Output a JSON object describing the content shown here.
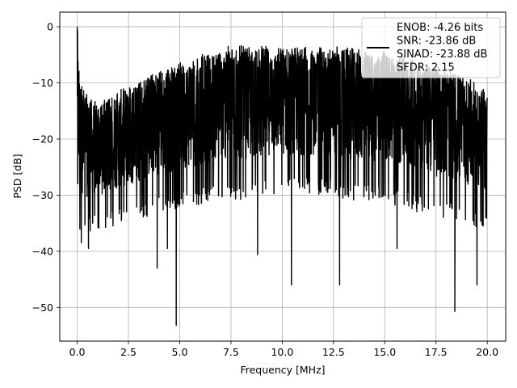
{
  "chart_data": {
    "type": "line",
    "xlabel": "Frequency [MHz]",
    "ylabel": "PSD [dB]",
    "xlim": [
      -0.85,
      20.9
    ],
    "ylim": [
      -56,
      2.6
    ],
    "grid": true,
    "legend_position": "top-right",
    "series": [
      {
        "name": "ENOB: -4.26 bits\nSNR: -23.86 dB\nSINAD: -23.88 dB\nSFDR: 2.15",
        "color": "#000000",
        "style": "dense noisy power spectral density trace",
        "envelope_x": [
          0,
          0.05,
          0.1,
          0.2,
          0.5,
          1,
          1.5,
          2,
          2.5,
          3,
          3.5,
          4,
          4.5,
          5,
          5.5,
          6,
          6.5,
          7,
          7.5,
          8,
          8.5,
          9,
          9.5,
          10,
          10.5,
          11,
          11.5,
          12,
          12.5,
          13,
          13.5,
          14,
          14.5,
          15,
          15.5,
          16,
          16.5,
          17,
          17.5,
          18,
          18.5,
          19,
          19.5,
          20
        ],
        "envelope_upper": [
          0,
          -4,
          -8,
          -10,
          -13,
          -14,
          -13,
          -12,
          -11,
          -10,
          -9,
          -8,
          -7.5,
          -7,
          -6.5,
          -5.5,
          -5,
          -4.5,
          -4,
          -4,
          -4.5,
          -4,
          -4.2,
          -4,
          -3.8,
          -4,
          -4.5,
          -4.2,
          -4,
          -4.3,
          -4.5,
          -4.8,
          -5,
          -5,
          -5.5,
          -6,
          -6.5,
          -7,
          -7.5,
          -8,
          -8.5,
          -9.5,
          -11,
          -12
        ],
        "envelope_lower": [
          -22,
          -36,
          -37,
          -37,
          -37,
          -36,
          -36,
          -35,
          -35,
          -34,
          -34,
          -33,
          -33,
          -32,
          -32,
          -32,
          -31,
          -31,
          -31,
          -31,
          -31,
          -30,
          -30,
          -30,
          -30,
          -30,
          -30,
          -30,
          -30,
          -31,
          -31,
          -31,
          -31,
          -31,
          -32,
          -32,
          -33,
          -33,
          -34,
          -34,
          -35,
          -35,
          -36,
          -36
        ],
        "deep_dips": [
          {
            "x": 0.2,
            "y": -38.5
          },
          {
            "x": 0.55,
            "y": -39.5
          },
          {
            "x": 3.9,
            "y": -43
          },
          {
            "x": 4.4,
            "y": -39.5
          },
          {
            "x": 4.83,
            "y": -53.2
          },
          {
            "x": 8.8,
            "y": -40.6
          },
          {
            "x": 10.45,
            "y": -46
          },
          {
            "x": 12.8,
            "y": -46
          },
          {
            "x": 15.6,
            "y": -39.5
          },
          {
            "x": 18.42,
            "y": -50.7
          },
          {
            "x": 19.5,
            "y": -46
          }
        ]
      }
    ],
    "xticks": [
      0.0,
      2.5,
      5.0,
      7.5,
      10.0,
      12.5,
      15.0,
      17.5,
      20.0
    ],
    "xtick_labels": [
      "0.0",
      "2.5",
      "5.0",
      "7.5",
      "10.0",
      "12.5",
      "15.0",
      "17.5",
      "20.0"
    ],
    "yticks": [
      0,
      -10,
      -20,
      -30,
      -40,
      -50
    ],
    "ytick_labels": [
      "0",
      "−10",
      "−20",
      "−30",
      "−40",
      "−50"
    ]
  }
}
